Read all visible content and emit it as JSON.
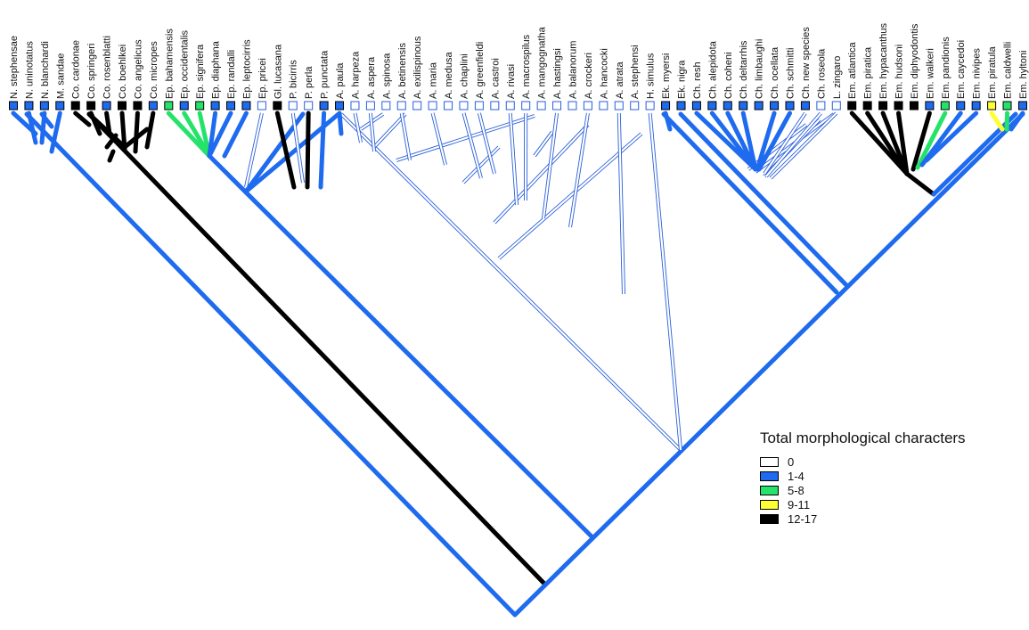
{
  "legend": {
    "title": "Total morphological characters",
    "items": [
      {
        "label": "0",
        "color": "#ffffff"
      },
      {
        "label": "1-4",
        "color": "#1f6bef"
      },
      {
        "label": "5-8",
        "color": "#25e36a"
      },
      {
        "label": "9-11",
        "color": "#ffff33"
      },
      {
        "label": "12-17",
        "color": "#000000"
      }
    ]
  },
  "taxa": [
    {
      "name": "N. stephensae",
      "cat": 1
    },
    {
      "name": "N. uninotatus",
      "cat": 1
    },
    {
      "name": "N. blanchardi",
      "cat": 1
    },
    {
      "name": "M. sandae",
      "cat": 1
    },
    {
      "name": "Co. cardonae",
      "cat": 4
    },
    {
      "name": "Co. springeri",
      "cat": 4
    },
    {
      "name": "Co. rosenblatti",
      "cat": 1
    },
    {
      "name": "Co. boehlkei",
      "cat": 4
    },
    {
      "name": "Co. angelicus",
      "cat": 4
    },
    {
      "name": "Co. micropes",
      "cat": 1
    },
    {
      "name": "Ep. bahamensis",
      "cat": 2
    },
    {
      "name": "Ep. occidentalis",
      "cat": 1
    },
    {
      "name": "Ep. signifera",
      "cat": 2
    },
    {
      "name": "Ep. diaphana",
      "cat": 1
    },
    {
      "name": "Ep. randalli",
      "cat": 1
    },
    {
      "name": "Ep. leptocirris",
      "cat": 1
    },
    {
      "name": "Ep. pricei",
      "cat": 0
    },
    {
      "name": "Gl. lucasana",
      "cat": 4
    },
    {
      "name": "P. bicirris",
      "cat": 0
    },
    {
      "name": "P. perla",
      "cat": 0
    },
    {
      "name": "P. punctata",
      "cat": 1
    },
    {
      "name": "A. paula",
      "cat": 1
    },
    {
      "name": "A. harpeza",
      "cat": 0
    },
    {
      "name": "A. aspera",
      "cat": 0
    },
    {
      "name": "A. spinosa",
      "cat": 0
    },
    {
      "name": "A. betinensis",
      "cat": 0
    },
    {
      "name": "A. exilispinous",
      "cat": 0
    },
    {
      "name": "A. maria",
      "cat": 0
    },
    {
      "name": "A. medusa",
      "cat": 0
    },
    {
      "name": "A. chaplini",
      "cat": 0
    },
    {
      "name": "A. greenfieldi",
      "cat": 0
    },
    {
      "name": "A. castroi",
      "cat": 0
    },
    {
      "name": "A. rivasi",
      "cat": 0
    },
    {
      "name": "A. macrospilus",
      "cat": 0
    },
    {
      "name": "A. mangognatha",
      "cat": 0
    },
    {
      "name": "A. hastingsi",
      "cat": 0
    },
    {
      "name": "A. balanorum",
      "cat": 0
    },
    {
      "name": "A. crockeri",
      "cat": 0
    },
    {
      "name": "A. hancocki",
      "cat": 0
    },
    {
      "name": "A. atrata",
      "cat": 0
    },
    {
      "name": "A. stephensi",
      "cat": 0
    },
    {
      "name": "H. simulus",
      "cat": 0
    },
    {
      "name": "Ek. myersi",
      "cat": 1
    },
    {
      "name": "Ek. nigra",
      "cat": 1
    },
    {
      "name": "Ch. resh",
      "cat": 1
    },
    {
      "name": "Ch. alepidota",
      "cat": 1
    },
    {
      "name": "Ch. coheni",
      "cat": 1
    },
    {
      "name": "Ch. deltarrhis",
      "cat": 1
    },
    {
      "name": "Ch. limbaughi",
      "cat": 1
    },
    {
      "name": "Ch. ocellata",
      "cat": 1
    },
    {
      "name": "Ch. schmitti",
      "cat": 1
    },
    {
      "name": "Ch. new species",
      "cat": 1
    },
    {
      "name": "Ch. roseola",
      "cat": 0
    },
    {
      "name": "L. zingaro",
      "cat": 0
    },
    {
      "name": "Em. atlantica",
      "cat": 4
    },
    {
      "name": "Em. piratica",
      "cat": 4
    },
    {
      "name": "Em. hypacanthus",
      "cat": 4
    },
    {
      "name": "Em. hudsoni",
      "cat": 4
    },
    {
      "name": "Em. diphyodontis",
      "cat": 4
    },
    {
      "name": "Em. walkeri",
      "cat": 1
    },
    {
      "name": "Em. pandionis",
      "cat": 2
    },
    {
      "name": "Em. caycedoi",
      "cat": 1
    },
    {
      "name": "Em. nivipes",
      "cat": 1
    },
    {
      "name": "Em. piratula",
      "cat": 3
    },
    {
      "name": "Em. caldwelli",
      "cat": 2
    },
    {
      "name": "Em. hyltoni",
      "cat": 1
    }
  ],
  "branches": [
    {
      "from": 0,
      "to": 8,
      "cat": 1
    },
    {
      "from": 1,
      "to": 4,
      "cat": 1
    },
    {
      "from": 2,
      "to": 4,
      "cat": 1
    },
    {
      "from": 3,
      "to": 8,
      "cat": 1
    },
    {
      "from": 4,
      "to": 7,
      "cat": 4
    },
    {
      "from": 5,
      "to": 6,
      "cat": 4
    },
    {
      "from": 6,
      "to": 6,
      "cat": 4
    },
    {
      "from": 7,
      "to": 8,
      "cat": 4
    },
    {
      "from": 8,
      "to": 8,
      "cat": 4
    },
    {
      "from": 9,
      "to": 8,
      "cat": 4
    },
    {
      "from": 10,
      "to": 14,
      "cat": 2
    },
    {
      "from": 11,
      "to": 14,
      "cat": 2
    },
    {
      "from": 12,
      "to": 14,
      "cat": 2
    },
    {
      "from": 13,
      "to": 14,
      "cat": 1
    },
    {
      "from": 14,
      "to": 14,
      "cat": 1
    },
    {
      "from": 15,
      "to": 14,
      "cat": 1
    },
    {
      "from": 16,
      "to": 18,
      "cat": 0
    },
    {
      "from": 17,
      "to": 18,
      "cat": 4
    },
    {
      "from": 18,
      "to": 18,
      "cat": 0
    },
    {
      "from": 19,
      "to": 18,
      "cat": 4
    },
    {
      "from": 20,
      "to": 18,
      "cat": 1
    },
    {
      "from": 21,
      "to": 22,
      "cat": 1
    },
    {
      "from": 22,
      "to": 24,
      "cat": 0
    },
    {
      "from": 23,
      "to": 24,
      "cat": 0
    },
    {
      "from": 25,
      "to": 26,
      "cat": 0
    },
    {
      "from": 27,
      "to": 28,
      "cat": 0
    },
    {
      "from": 29,
      "to": 31,
      "cat": 0
    },
    {
      "from": 30,
      "to": 31,
      "cat": 0
    },
    {
      "from": 32,
      "to": 34,
      "cat": 0
    },
    {
      "from": 33,
      "to": 34,
      "cat": 0
    },
    {
      "from": 35,
      "to": 36,
      "cat": 0
    },
    {
      "from": 37,
      "to": 38,
      "cat": 0
    },
    {
      "from": 39,
      "to": 40,
      "cat": 0
    },
    {
      "from": 41,
      "to": 41,
      "cat": 0
    },
    {
      "from": 42,
      "to": 43,
      "cat": 1
    },
    {
      "from": 44,
      "to": 48,
      "cat": 1
    },
    {
      "from": 45,
      "to": 48,
      "cat": 1
    },
    {
      "from": 46,
      "to": 48,
      "cat": 1
    },
    {
      "from": 47,
      "to": 48,
      "cat": 1
    },
    {
      "from": 49,
      "to": 48,
      "cat": 1
    },
    {
      "from": 50,
      "to": 48,
      "cat": 1
    },
    {
      "from": 51,
      "to": 49,
      "cat": 0
    },
    {
      "from": 52,
      "to": 50,
      "cat": 0
    },
    {
      "from": 53,
      "to": 51,
      "cat": 0
    },
    {
      "from": 54,
      "to": 58,
      "cat": 4
    },
    {
      "from": 55,
      "to": 58,
      "cat": 4
    },
    {
      "from": 56,
      "to": 58,
      "cat": 4
    },
    {
      "from": 57,
      "to": 58,
      "cat": 4
    },
    {
      "from": 59,
      "to": 58,
      "cat": 4
    },
    {
      "from": 60,
      "to": 59,
      "cat": 2
    },
    {
      "from": 61,
      "to": 59,
      "cat": 1
    },
    {
      "from": 62,
      "to": 60,
      "cat": 1
    },
    {
      "from": 63,
      "to": 64,
      "cat": 3
    },
    {
      "from": 64,
      "to": 64,
      "cat": 2
    },
    {
      "from": 65,
      "to": 64,
      "cat": 1
    }
  ]
}
